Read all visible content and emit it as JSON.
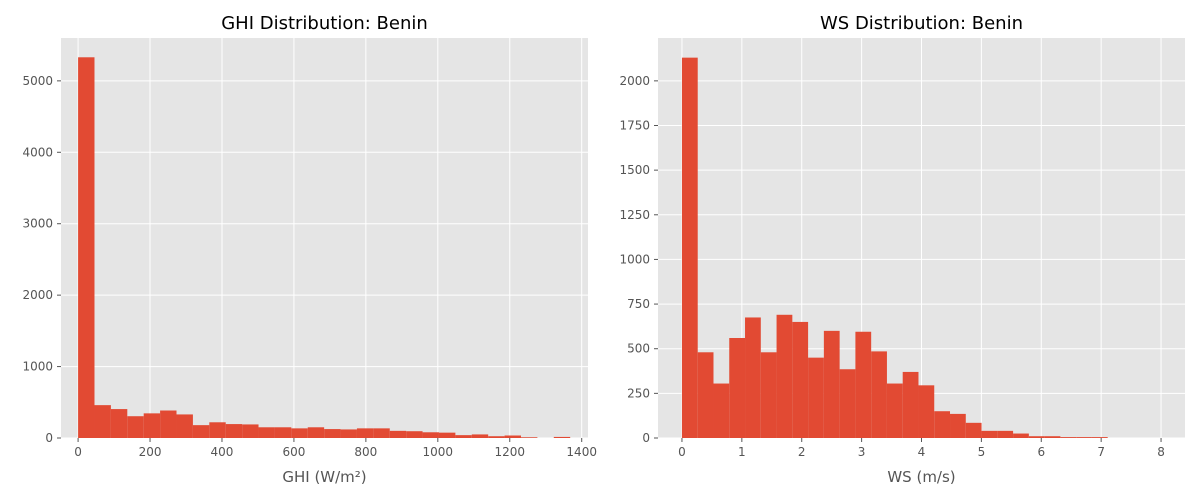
{
  "chart_data": [
    {
      "type": "bar",
      "subtype": "histogram",
      "title": "GHI Distribution: Benin",
      "xlabel": "GHI (W/m²)",
      "ylabel": "",
      "xlim": [
        -47.5,
        1417.5
      ],
      "ylim": [
        0,
        5600
      ],
      "xticks": [
        0,
        200,
        400,
        600,
        800,
        1000,
        1200,
        1400
      ],
      "yticks": [
        0,
        1000,
        2000,
        3000,
        4000,
        5000
      ],
      "grid": true,
      "bar_color": "#E24A33",
      "bins": {
        "start": 0,
        "width": 45.6,
        "counts": [
          5330,
          460,
          405,
          305,
          345,
          385,
          330,
          180,
          220,
          195,
          190,
          150,
          150,
          135,
          150,
          125,
          120,
          135,
          135,
          100,
          95,
          80,
          75,
          40,
          50,
          25,
          35,
          10,
          0,
          15
        ]
      }
    },
    {
      "type": "bar",
      "subtype": "histogram",
      "title": "WS Distribution: Benin",
      "xlabel": "WS (m/s)",
      "ylabel": "",
      "xlim": [
        -0.4,
        8.4
      ],
      "ylim": [
        0,
        2240
      ],
      "xticks": [
        0,
        1,
        2,
        3,
        4,
        5,
        6,
        7,
        8
      ],
      "yticks": [
        0,
        250,
        500,
        750,
        1000,
        1250,
        1500,
        1750,
        2000
      ],
      "grid": true,
      "bar_color": "#E24A33",
      "bins": {
        "start": 0,
        "width": 0.2633,
        "counts": [
          2130,
          480,
          305,
          560,
          675,
          480,
          690,
          650,
          450,
          600,
          385,
          595,
          485,
          305,
          370,
          295,
          150,
          135,
          85,
          40,
          40,
          25,
          10,
          10,
          5,
          5,
          5,
          0,
          0,
          0
        ]
      }
    }
  ]
}
